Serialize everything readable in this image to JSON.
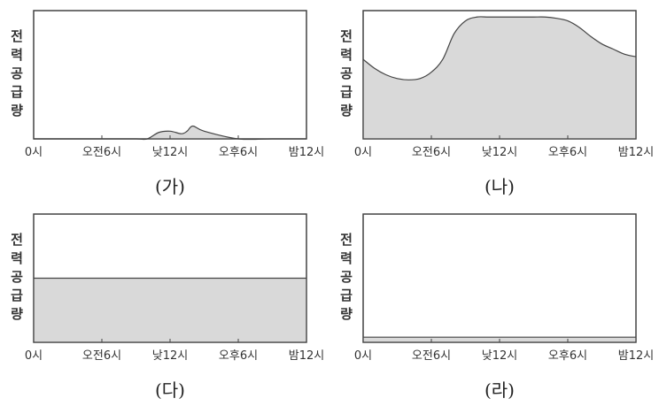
{
  "chart_data": [
    {
      "type": "area",
      "panel_label": "(가)",
      "ylabel": "전력공급량",
      "categories": [
        "0시",
        "오전6시",
        "낮12시",
        "오후6시",
        "밤12시"
      ],
      "x": [
        0,
        3,
        6,
        9,
        10,
        11,
        12,
        13,
        13.5,
        14,
        15,
        18,
        21,
        24
      ],
      "values": [
        0,
        0,
        0,
        0,
        0,
        0.05,
        0.06,
        0.04,
        0.06,
        0.1,
        0.06,
        0,
        0,
        0
      ],
      "ylim": [
        0,
        1
      ],
      "fill": "#d9d9d9"
    },
    {
      "type": "area",
      "panel_label": "(나)",
      "ylabel": "전력공급량",
      "categories": [
        "0시",
        "오전6시",
        "낮12시",
        "오후6시",
        "밤12시"
      ],
      "x": [
        0,
        1,
        2,
        3,
        4,
        5,
        6,
        7,
        8,
        9,
        10,
        11,
        12,
        13,
        14,
        15,
        16,
        17,
        18,
        19,
        20,
        21,
        22,
        23,
        24
      ],
      "values": [
        0.62,
        0.55,
        0.5,
        0.47,
        0.46,
        0.47,
        0.52,
        0.62,
        0.82,
        0.92,
        0.95,
        0.95,
        0.95,
        0.95,
        0.95,
        0.95,
        0.95,
        0.94,
        0.92,
        0.87,
        0.8,
        0.74,
        0.7,
        0.66,
        0.64
      ],
      "ylim": [
        0,
        1
      ],
      "fill": "#d9d9d9"
    },
    {
      "type": "area",
      "panel_label": "(다)",
      "ylabel": "전력공급량",
      "categories": [
        "0시",
        "오전6시",
        "낮12시",
        "오후6시",
        "밤12시"
      ],
      "x": [
        0,
        6,
        12,
        18,
        24
      ],
      "values": [
        0.5,
        0.5,
        0.5,
        0.5,
        0.5
      ],
      "ylim": [
        0,
        1
      ],
      "fill": "#d9d9d9"
    },
    {
      "type": "area",
      "panel_label": "(라)",
      "ylabel": "전력공급량",
      "categories": [
        "0시",
        "오전6시",
        "낮12시",
        "오후6시",
        "밤12시"
      ],
      "x": [
        0,
        6,
        12,
        18,
        24
      ],
      "values": [
        0.04,
        0.04,
        0.04,
        0.04,
        0.04
      ],
      "ylim": [
        0,
        1
      ],
      "fill": "#d9d9d9"
    }
  ]
}
